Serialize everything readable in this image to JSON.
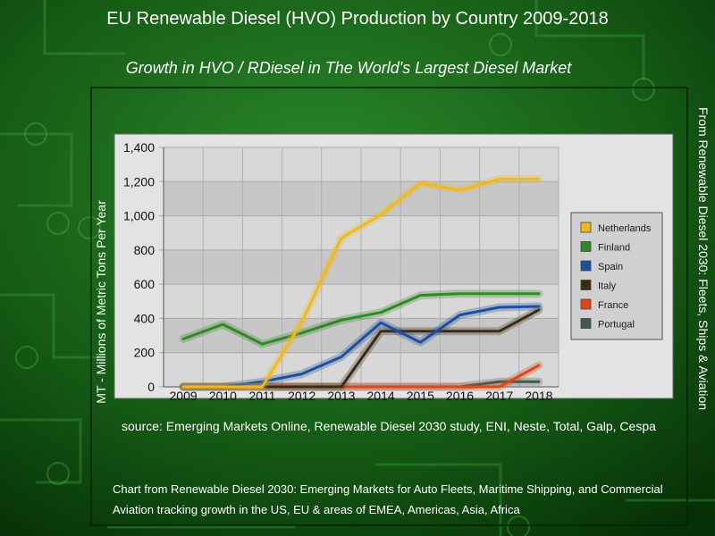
{
  "title": "EU Renewable Diesel (HVO) Production by Country 2009-2018",
  "subtitle": "Growth in HVO / RDiesel in The World's Largest Diesel Market",
  "side_note": "From Renewable Diesel 2030: Fleets, Ships & Aviation",
  "source": "source: Emerging Markets Online, Renewable Diesel 2030 study, ENI, Neste, Total, Galp, Cespa",
  "footer": "Chart from Renewable Diesel 2030: Emerging Markets for Auto Fleets, Maritime Shipping, and Commercial Aviation tracking growth in the US, EU & areas of EMEA, Americas, Asia, Africa",
  "chart_data": {
    "type": "line",
    "title": "EU Renewable Diesel (HVO) Production by Country 2009-2018",
    "xlabel": "",
    "ylabel": "MT - Millions of Metric Tons Per Year",
    "x": [
      "2009",
      "2010",
      "2011",
      "2012",
      "2013",
      "2014",
      "2015",
      "2016",
      "2017",
      "2018"
    ],
    "ylim": [
      0,
      1400
    ],
    "yticks": [
      0,
      200,
      400,
      600,
      800,
      1000,
      1200,
      1400
    ],
    "ytick_labels": [
      "0",
      "200",
      "400",
      "600",
      "800",
      "1,000",
      "1,200",
      "1,400"
    ],
    "grid": true,
    "legend_position": "right",
    "series": [
      {
        "name": "Netherlands",
        "color": "#f2b81c",
        "values": [
          0,
          0,
          0,
          380,
          870,
          1005,
          1190,
          1150,
          1215,
          1215
        ]
      },
      {
        "name": "Finland",
        "color": "#2e8a22",
        "values": [
          280,
          365,
          250,
          315,
          390,
          435,
          535,
          545,
          545,
          545
        ]
      },
      {
        "name": "Spain",
        "color": "#1d4f9c",
        "values": [
          0,
          0,
          30,
          75,
          175,
          375,
          260,
          420,
          465,
          470
        ]
      },
      {
        "name": "Italy",
        "color": "#3a2c12",
        "values": [
          0,
          0,
          0,
          0,
          0,
          325,
          325,
          325,
          325,
          450
        ]
      },
      {
        "name": "France",
        "color": "#e0461a",
        "values": [
          0,
          0,
          0,
          0,
          0,
          0,
          0,
          0,
          0,
          125
        ]
      },
      {
        "name": "Portugal",
        "color": "#3f5a48",
        "values": [
          0,
          0,
          0,
          0,
          0,
          0,
          0,
          0,
          30,
          30
        ]
      }
    ]
  }
}
